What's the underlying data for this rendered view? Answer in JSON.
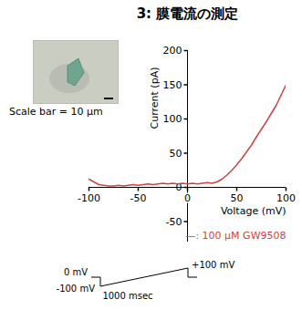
{
  "chart_data": {
    "type": "line",
    "title": "3: 膜電流の測定",
    "x_label": "Voltage (mV)",
    "y_label": "Current (pA)",
    "x": [
      -100,
      -95,
      -90,
      -85,
      -80,
      -75,
      -70,
      -65,
      -60,
      -55,
      -50,
      -45,
      -40,
      -35,
      -30,
      -25,
      -20,
      -15,
      -10,
      -5,
      0,
      5,
      10,
      15,
      20,
      25,
      30,
      35,
      40,
      45,
      50,
      55,
      60,
      65,
      70,
      75,
      80,
      85,
      90,
      95,
      100
    ],
    "series": [
      {
        "name": "—: 100 μM GW9508",
        "color": "#cc4444",
        "values": [
          12,
          8,
          4,
          3,
          2,
          2,
          3,
          2,
          3,
          4,
          3,
          4,
          5,
          4,
          5,
          6,
          5,
          6,
          5,
          6,
          5,
          6,
          5,
          6,
          7,
          6,
          8,
          12,
          18,
          25,
          33,
          42,
          52,
          62,
          74,
          85,
          96,
          108,
          120,
          135,
          150
        ]
      }
    ],
    "xlim": [
      -100,
      100
    ],
    "xticks": [
      -100,
      -50,
      0,
      50,
      100
    ],
    "ylim": [
      -80,
      200
    ],
    "yticks": [
      -50,
      0,
      50,
      100,
      150,
      200
    ],
    "legend": "bottom-right",
    "inset": {
      "caption": "Scale bar = 10 μm"
    },
    "protocol": {
      "hold": "0 mV",
      "start": "-100 mV",
      "end": "+100 mV",
      "duration": "1000 msec"
    }
  }
}
